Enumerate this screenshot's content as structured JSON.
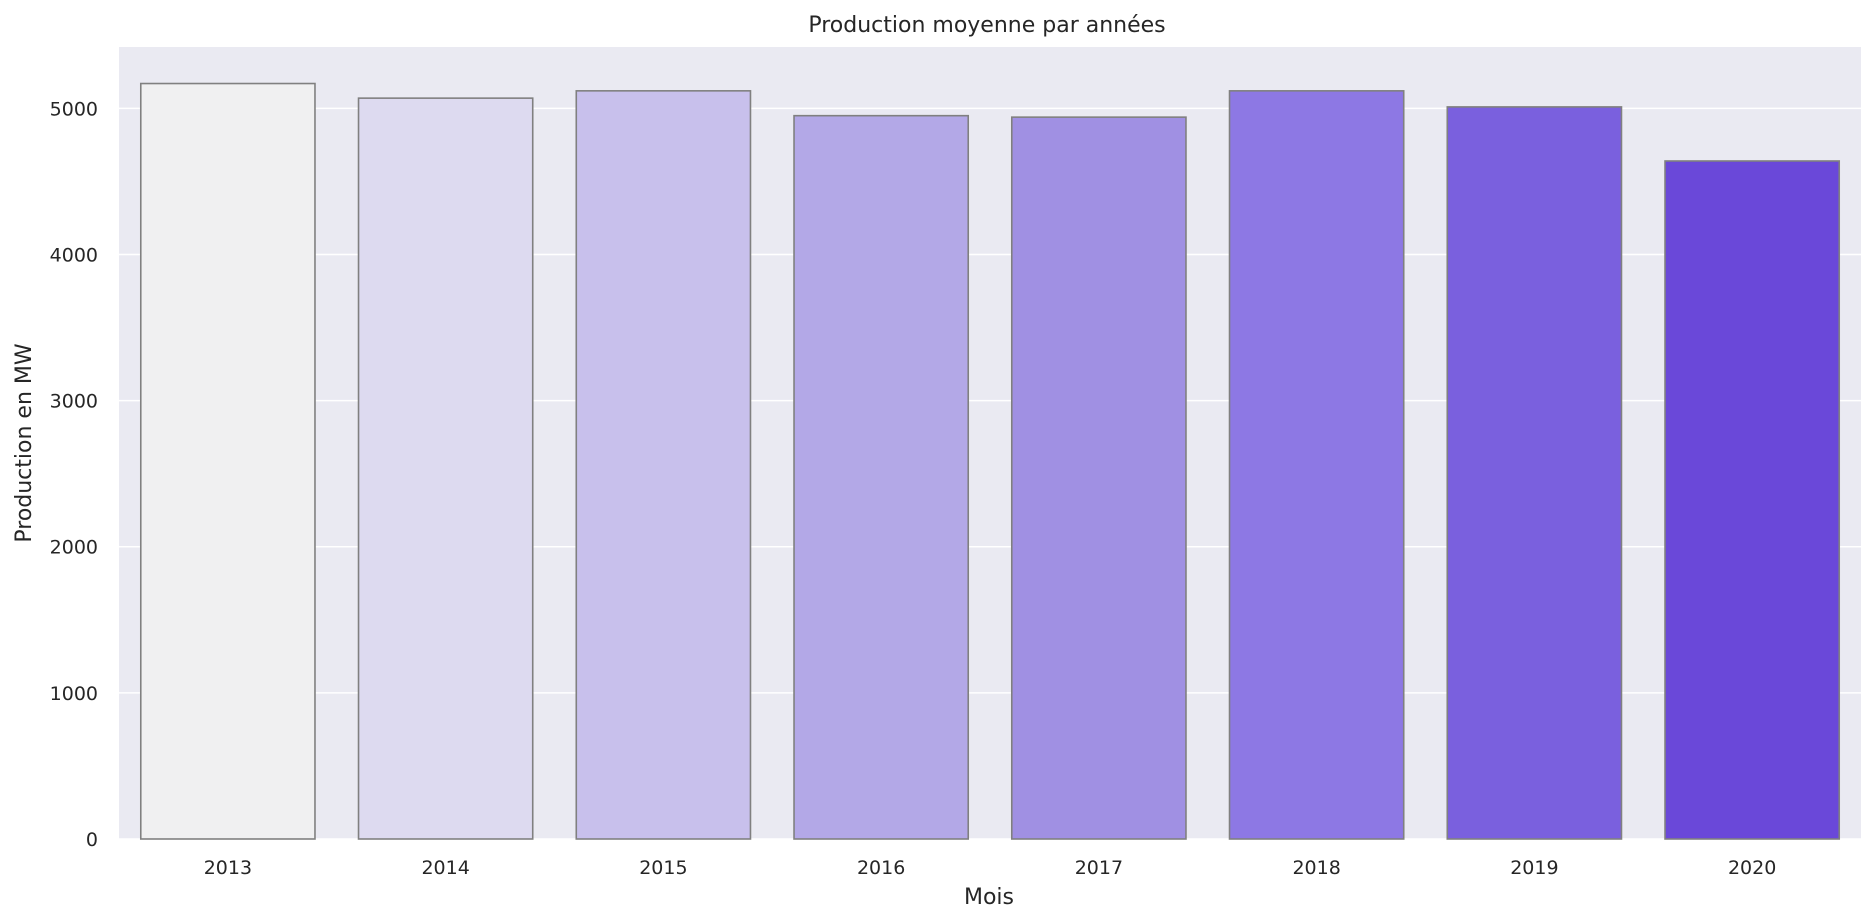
{
  "chart_data": {
    "type": "bar",
    "title": "Production moyenne par années",
    "xlabel": "Mois",
    "ylabel": "Production en MW",
    "categories": [
      "2013",
      "2014",
      "2015",
      "2016",
      "2017",
      "2018",
      "2019",
      "2020"
    ],
    "values": [
      5170,
      5070,
      5120,
      4950,
      4940,
      5120,
      5010,
      4640
    ],
    "colors": [
      "#f0f0f1",
      "#dddaf0",
      "#c8c0ec",
      "#b3a8e7",
      "#a090e3",
      "#8d78e4",
      "#7a60de",
      "#6a48d9"
    ],
    "ylim": [
      0,
      5420
    ],
    "yticks": [
      0,
      1000,
      2000,
      3000,
      4000,
      5000
    ],
    "grid": true,
    "style": {
      "background": "#eaeaf2",
      "grid_color": "#ffffff",
      "bar_edge": "#808080"
    }
  }
}
